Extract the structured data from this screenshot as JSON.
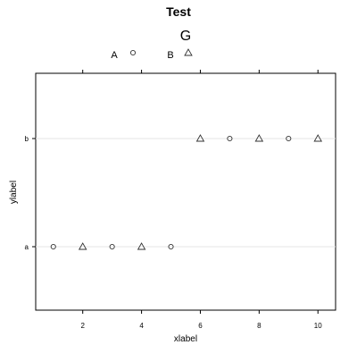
{
  "chart_data": {
    "type": "scatter",
    "title": "Test",
    "xlabel": "xlabel",
    "ylabel": "ylabel",
    "xlim": [
      0.4,
      10.6
    ],
    "categories": [
      "a",
      "b"
    ],
    "x_ticks": [
      2,
      4,
      6,
      8,
      10
    ],
    "grid": "horizontal lines at each category",
    "legend": {
      "placement": "top",
      "title": "G",
      "entries": [
        {
          "label": "A",
          "marker": "circle"
        },
        {
          "label": "B",
          "marker": "triangle"
        }
      ]
    },
    "series": [
      {
        "name": "A",
        "marker": "circle",
        "points": [
          {
            "x": 1,
            "y": "a"
          },
          {
            "x": 3,
            "y": "a"
          },
          {
            "x": 5,
            "y": "a"
          },
          {
            "x": 7,
            "y": "b"
          },
          {
            "x": 9,
            "y": "b"
          }
        ]
      },
      {
        "name": "B",
        "marker": "triangle",
        "points": [
          {
            "x": 2,
            "y": "a"
          },
          {
            "x": 4,
            "y": "a"
          },
          {
            "x": 6,
            "y": "b"
          },
          {
            "x": 8,
            "y": "b"
          },
          {
            "x": 10,
            "y": "b"
          }
        ]
      }
    ],
    "colors": {
      "marker": "#333333",
      "grid": "#e6e6e6",
      "frame": "#000000"
    }
  }
}
